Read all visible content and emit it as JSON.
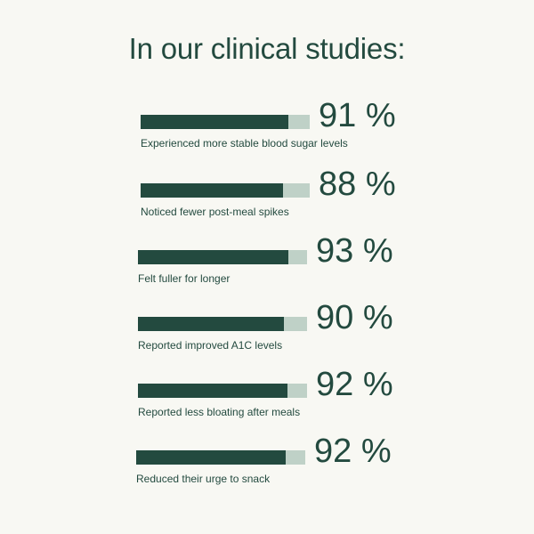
{
  "title": "In our clinical studies:",
  "colors": {
    "background": "#f8f8f3",
    "primary": "#234a3f",
    "track": "#bfd1c7"
  },
  "chart_data": {
    "type": "bar",
    "orientation": "horizontal",
    "title": "In our clinical studies:",
    "xlim": [
      0,
      100
    ],
    "unit": "%",
    "categories": [
      "Experienced more stable blood sugar levels",
      "Noticed fewer post-meal spikes",
      "Felt fuller for longer",
      "Reported improved A1C levels",
      "Reported less bloating after meals",
      "Reduced their urge to snack"
    ],
    "values": [
      91,
      88,
      93,
      90,
      92,
      92
    ],
    "value_labels": [
      "91 %",
      "88 %",
      "93 %",
      "90 %",
      "92 %",
      "92 %"
    ]
  }
}
